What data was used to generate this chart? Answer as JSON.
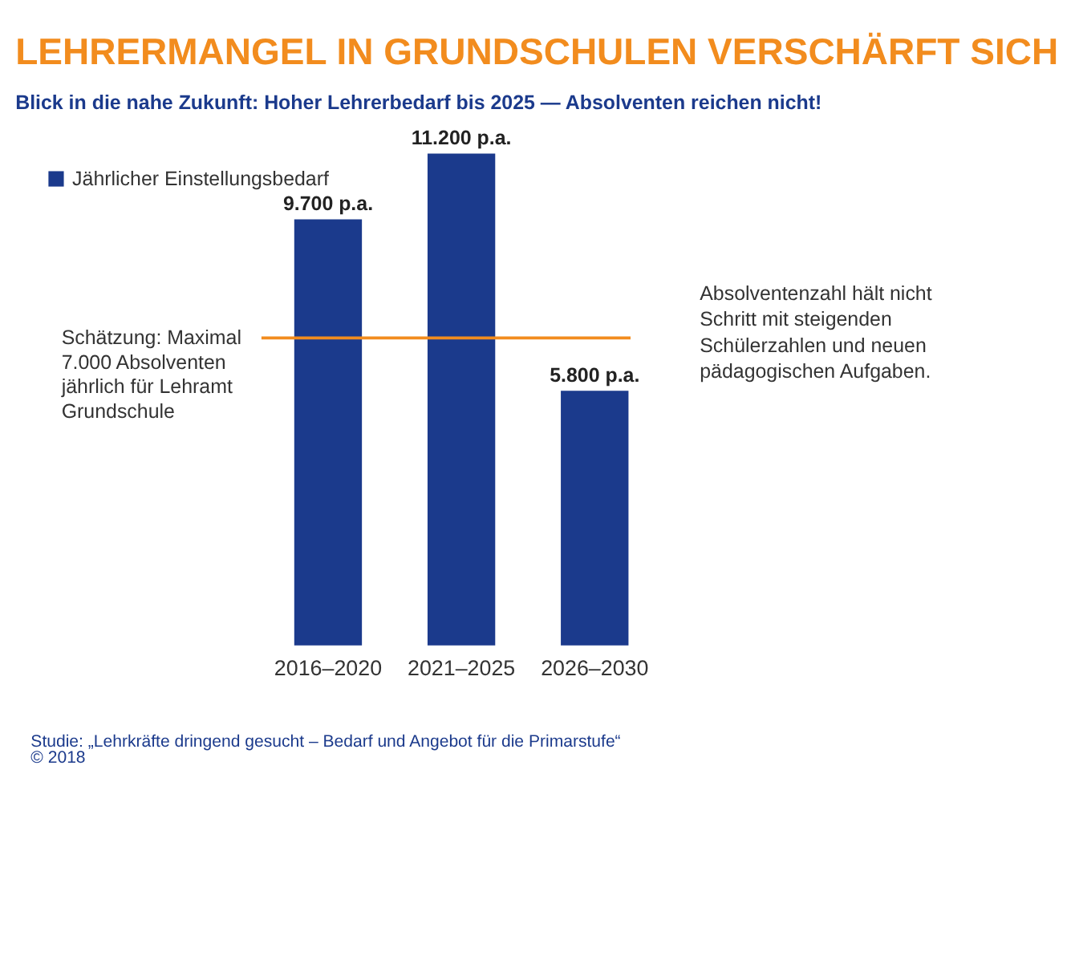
{
  "chart_data": {
    "type": "bar",
    "title": "LEHRERMANGEL IN GRUNDSCHULEN VERSCHÄRFT SICH",
    "subtitle": "Blick in die nahe Zukunft: Hoher Lehrerbedarf bis 2025 — Absolventen reichen nicht!",
    "categories": [
      "2016–2020",
      "2021–2025",
      "2026–2030"
    ],
    "series": [
      {
        "name": "Jährlicher Einstellungsbedarf",
        "color": "#1b3a8c",
        "values": [
          9700,
          11200,
          5800
        ],
        "value_labels": [
          "9.700 p.a.",
          "11.200 p.a.",
          "5.800 p.a."
        ]
      }
    ],
    "ref_lines": [
      {
        "axis": "y",
        "value": 7000,
        "label": "Schätzung: Maximal\n7.000 Absolventen\njährlich für Lehramt\nGrundschule",
        "color": "#f28c1e"
      }
    ],
    "annotations": [
      "Absolventenzahl hält nicht\nSchritt mit steigenden\nSchülerzahlen und neuen\npädagogischen Aufgaben.",
      "Studie: „Lehrkräfte dringend gesucht – Bedarf und Angebot für die Primarstufe“",
      "© 2018"
    ],
    "legend": "top left",
    "grid": false
  }
}
